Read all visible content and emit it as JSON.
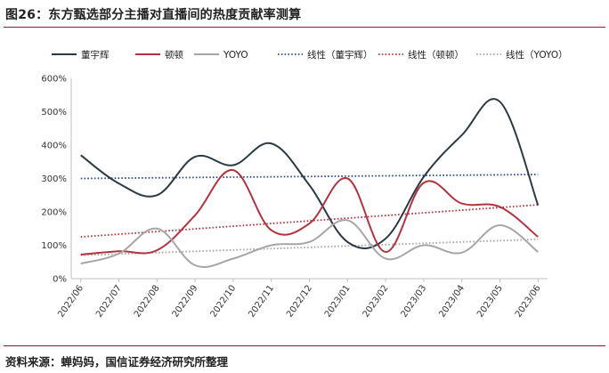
{
  "header": {
    "title": "图26：东方甄选部分主播对直播间的热度贡献率测算"
  },
  "footer": {
    "source": "资料来源：蝉妈妈，国信证券经济研究所整理"
  },
  "chart_data": {
    "type": "line",
    "categories": [
      "2022/06",
      "2022/07",
      "2022/08",
      "2022/09",
      "2022/10",
      "2022/11",
      "2022/12",
      "2023/01",
      "2023/02",
      "2023/03",
      "2023/04",
      "2023/05",
      "2023/06"
    ],
    "ylim": [
      0,
      600
    ],
    "ytick_values": [
      0,
      100,
      200,
      300,
      400,
      500,
      600
    ],
    "ytick_labels": [
      "0%",
      "100%",
      "200%",
      "300%",
      "400%",
      "500%",
      "600%"
    ],
    "legend_position": "top",
    "series": [
      {
        "name": "董宇辉",
        "color": "#2b3a42",
        "style": "solid",
        "values": [
          370,
          285,
          250,
          365,
          340,
          405,
          280,
          110,
          120,
          305,
          430,
          530,
          220
        ]
      },
      {
        "name": "顿顿",
        "color": "#b2333f",
        "style": "solid",
        "values": [
          72,
          82,
          85,
          190,
          325,
          145,
          165,
          300,
          80,
          287,
          225,
          215,
          125
        ]
      },
      {
        "name": "YOYO",
        "color": "#a6a6a6",
        "style": "solid",
        "values": [
          45,
          75,
          150,
          40,
          60,
          100,
          110,
          175,
          60,
          100,
          78,
          160,
          80
        ]
      },
      {
        "name": "线性（董宇辉）",
        "color": "#2f4a8c",
        "style": "dotted",
        "values": [
          300,
          301,
          302,
          303,
          304,
          305,
          306,
          307,
          308,
          309,
          310,
          311,
          312
        ]
      },
      {
        "name": "线性（顿顿）",
        "color": "#b2333f",
        "style": "dotted",
        "values": [
          125,
          133,
          141,
          149,
          157,
          165,
          173,
          181,
          189,
          197,
          205,
          213,
          221
        ]
      },
      {
        "name": "线性（YOYO）",
        "color": "#a6a6a6",
        "style": "dotted",
        "values": [
          70,
          74,
          78,
          82,
          86,
          90,
          94,
          98,
          102,
          106,
          110,
          114,
          118
        ]
      }
    ]
  }
}
